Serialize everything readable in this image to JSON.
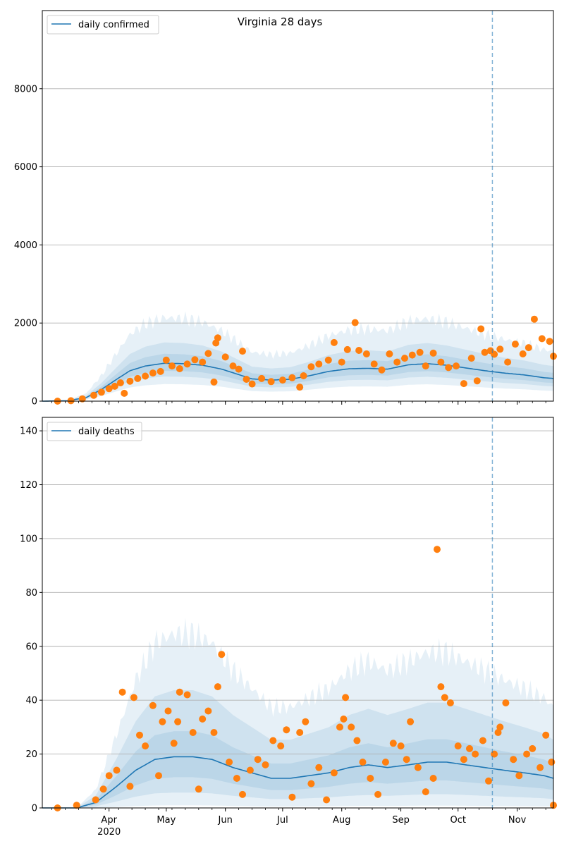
{
  "chart_data": [
    {
      "type": "line",
      "title": "Virginia 28 days",
      "legend": {
        "placement": "top-left",
        "label": "daily confirmed"
      },
      "ylim": [
        0,
        10000
      ],
      "yticks": [
        0,
        2000,
        4000,
        6000,
        8000
      ],
      "grid": "horizontal",
      "forecast_start": "2020-10-19",
      "colors": {
        "line": "#1f77b4",
        "points": "#ff7f0e",
        "band": "#1f77b4"
      },
      "series": [
        {
          "name": "daily confirmed",
          "kind": "model-line",
          "points": [
            [
              "2020-02-26",
              0
            ],
            [
              "2020-03-10",
              10
            ],
            [
              "2020-03-20",
              90
            ],
            [
              "2020-03-28",
              300
            ],
            [
              "2020-04-05",
              560
            ],
            [
              "2020-04-12",
              780
            ],
            [
              "2020-04-20",
              900
            ],
            [
              "2020-04-30",
              970
            ],
            [
              "2020-05-10",
              960
            ],
            [
              "2020-05-20",
              920
            ],
            [
              "2020-05-30",
              820
            ],
            [
              "2020-06-08",
              680
            ],
            [
              "2020-06-15",
              570
            ],
            [
              "2020-06-25",
              540
            ],
            [
              "2020-07-05",
              560
            ],
            [
              "2020-07-15",
              650
            ],
            [
              "2020-07-25",
              760
            ],
            [
              "2020-08-05",
              830
            ],
            [
              "2020-08-15",
              840
            ],
            [
              "2020-08-25",
              820
            ],
            [
              "2020-09-05",
              930
            ],
            [
              "2020-09-15",
              960
            ],
            [
              "2020-09-25",
              920
            ],
            [
              "2020-10-05",
              850
            ],
            [
              "2020-10-15",
              780
            ],
            [
              "2020-10-25",
              720
            ],
            [
              "2020-11-05",
              670
            ],
            [
              "2020-11-15",
              600
            ],
            [
              "2020-11-20",
              580
            ]
          ]
        },
        {
          "name": "reported",
          "kind": "observations",
          "points": [
            [
              "2020-03-05",
              0
            ],
            [
              "2020-03-12",
              10
            ],
            [
              "2020-03-18",
              60
            ],
            [
              "2020-03-24",
              150
            ],
            [
              "2020-03-28",
              230
            ],
            [
              "2020-04-01",
              320
            ],
            [
              "2020-04-04",
              380
            ],
            [
              "2020-04-07",
              470
            ],
            [
              "2020-04-09",
              200
            ],
            [
              "2020-04-12",
              510
            ],
            [
              "2020-04-16",
              580
            ],
            [
              "2020-04-20",
              640
            ],
            [
              "2020-04-24",
              720
            ],
            [
              "2020-04-28",
              760
            ],
            [
              "2020-05-01",
              1050
            ],
            [
              "2020-05-04",
              900
            ],
            [
              "2020-05-08",
              830
            ],
            [
              "2020-05-12",
              950
            ],
            [
              "2020-05-16",
              1060
            ],
            [
              "2020-05-20",
              1000
            ],
            [
              "2020-05-23",
              1220
            ],
            [
              "2020-05-26",
              490
            ],
            [
              "2020-05-28",
              1620
            ],
            [
              "2020-05-27",
              1490
            ],
            [
              "2020-06-01",
              1130
            ],
            [
              "2020-06-05",
              900
            ],
            [
              "2020-06-08",
              820
            ],
            [
              "2020-06-10",
              1280
            ],
            [
              "2020-06-12",
              560
            ],
            [
              "2020-06-15",
              440
            ],
            [
              "2020-06-20",
              580
            ],
            [
              "2020-06-25",
              500
            ],
            [
              "2020-07-01",
              540
            ],
            [
              "2020-07-06",
              600
            ],
            [
              "2020-07-10",
              360
            ],
            [
              "2020-07-12",
              650
            ],
            [
              "2020-07-16",
              880
            ],
            [
              "2020-07-20",
              950
            ],
            [
              "2020-07-25",
              1050
            ],
            [
              "2020-07-28",
              1500
            ],
            [
              "2020-08-01",
              1000
            ],
            [
              "2020-08-04",
              1320
            ],
            [
              "2020-08-08",
              2010
            ],
            [
              "2020-08-10",
              1300
            ],
            [
              "2020-08-14",
              1210
            ],
            [
              "2020-08-18",
              950
            ],
            [
              "2020-08-22",
              800
            ],
            [
              "2020-08-26",
              1210
            ],
            [
              "2020-08-30",
              1000
            ],
            [
              "2020-09-03",
              1100
            ],
            [
              "2020-09-07",
              1180
            ],
            [
              "2020-09-11",
              1250
            ],
            [
              "2020-09-14",
              900
            ],
            [
              "2020-09-18",
              1230
            ],
            [
              "2020-09-22",
              1000
            ],
            [
              "2020-09-26",
              860
            ],
            [
              "2020-09-30",
              900
            ],
            [
              "2020-10-04",
              450
            ],
            [
              "2020-10-08",
              1100
            ],
            [
              "2020-10-11",
              520
            ],
            [
              "2020-10-13",
              1850
            ],
            [
              "2020-10-15",
              1250
            ],
            [
              "2020-10-18",
              1290
            ],
            [
              "2020-10-20",
              1200
            ],
            [
              "2020-10-23",
              1330
            ],
            [
              "2020-10-27",
              1000
            ],
            [
              "2020-10-31",
              1460
            ],
            [
              "2020-11-04",
              1210
            ],
            [
              "2020-11-07",
              1370
            ],
            [
              "2020-11-10",
              2100
            ],
            [
              "2020-11-14",
              1600
            ],
            [
              "2020-11-18",
              1530
            ],
            [
              "2020-11-20",
              1150
            ]
          ]
        }
      ]
    },
    {
      "type": "line",
      "title": "",
      "legend": {
        "placement": "top-left",
        "label": "daily deaths"
      },
      "ylim": [
        0,
        145
      ],
      "yticks": [
        0,
        20,
        40,
        60,
        80,
        100,
        120,
        140
      ],
      "grid": "horizontal",
      "forecast_start": "2020-10-19",
      "x_ticks": [
        "Apr",
        "May",
        "Jun",
        "Jul",
        "Aug",
        "Sep",
        "Oct",
        "Nov"
      ],
      "x_year_label": "2020",
      "colors": {
        "line": "#1f77b4",
        "points": "#ff7f0e",
        "band": "#1f77b4"
      },
      "series": [
        {
          "name": "daily deaths",
          "kind": "model-line",
          "points": [
            [
              "2020-02-26",
              0
            ],
            [
              "2020-03-15",
              0
            ],
            [
              "2020-03-25",
              2
            ],
            [
              "2020-04-05",
              8
            ],
            [
              "2020-04-15",
              14
            ],
            [
              "2020-04-25",
              18
            ],
            [
              "2020-05-05",
              19
            ],
            [
              "2020-05-15",
              19
            ],
            [
              "2020-05-25",
              18
            ],
            [
              "2020-06-05",
              15
            ],
            [
              "2020-06-15",
              13
            ],
            [
              "2020-06-25",
              11
            ],
            [
              "2020-07-05",
              11
            ],
            [
              "2020-07-15",
              12
            ],
            [
              "2020-07-25",
              13
            ],
            [
              "2020-08-05",
              15
            ],
            [
              "2020-08-15",
              16
            ],
            [
              "2020-08-25",
              15
            ],
            [
              "2020-09-05",
              16
            ],
            [
              "2020-09-15",
              17
            ],
            [
              "2020-09-25",
              17
            ],
            [
              "2020-10-05",
              16
            ],
            [
              "2020-10-15",
              15
            ],
            [
              "2020-10-25",
              14
            ],
            [
              "2020-11-05",
              13
            ],
            [
              "2020-11-15",
              12
            ],
            [
              "2020-11-20",
              11
            ]
          ]
        },
        {
          "name": "reported",
          "kind": "observations",
          "points": [
            [
              "2020-03-05",
              0
            ],
            [
              "2020-03-15",
              1
            ],
            [
              "2020-03-25",
              3
            ],
            [
              "2020-03-29",
              7
            ],
            [
              "2020-04-01",
              12
            ],
            [
              "2020-04-05",
              14
            ],
            [
              "2020-04-08",
              43
            ],
            [
              "2020-04-12",
              8
            ],
            [
              "2020-04-14",
              41
            ],
            [
              "2020-04-17",
              27
            ],
            [
              "2020-04-20",
              23
            ],
            [
              "2020-04-24",
              38
            ],
            [
              "2020-04-27",
              12
            ],
            [
              "2020-04-29",
              32
            ],
            [
              "2020-05-02",
              36
            ],
            [
              "2020-05-05",
              24
            ],
            [
              "2020-05-07",
              32
            ],
            [
              "2020-05-08",
              43
            ],
            [
              "2020-05-12",
              42
            ],
            [
              "2020-05-15",
              28
            ],
            [
              "2020-05-18",
              7
            ],
            [
              "2020-05-20",
              33
            ],
            [
              "2020-05-23",
              36
            ],
            [
              "2020-05-26",
              28
            ],
            [
              "2020-05-28",
              45
            ],
            [
              "2020-05-30",
              57
            ],
            [
              "2020-06-03",
              17
            ],
            [
              "2020-06-07",
              11
            ],
            [
              "2020-06-10",
              5
            ],
            [
              "2020-06-14",
              14
            ],
            [
              "2020-06-18",
              18
            ],
            [
              "2020-06-22",
              16
            ],
            [
              "2020-06-26",
              25
            ],
            [
              "2020-06-30",
              23
            ],
            [
              "2020-07-03",
              29
            ],
            [
              "2020-07-06",
              4
            ],
            [
              "2020-07-10",
              28
            ],
            [
              "2020-07-13",
              32
            ],
            [
              "2020-07-16",
              9
            ],
            [
              "2020-07-20",
              15
            ],
            [
              "2020-07-24",
              3
            ],
            [
              "2020-07-28",
              13
            ],
            [
              "2020-07-31",
              30
            ],
            [
              "2020-08-02",
              33
            ],
            [
              "2020-08-03",
              41
            ],
            [
              "2020-08-06",
              30
            ],
            [
              "2020-08-09",
              25
            ],
            [
              "2020-08-12",
              17
            ],
            [
              "2020-08-16",
              11
            ],
            [
              "2020-08-20",
              5
            ],
            [
              "2020-08-24",
              17
            ],
            [
              "2020-08-28",
              24
            ],
            [
              "2020-09-01",
              23
            ],
            [
              "2020-09-04",
              18
            ],
            [
              "2020-09-06",
              32
            ],
            [
              "2020-09-10",
              15
            ],
            [
              "2020-09-14",
              6
            ],
            [
              "2020-09-18",
              11
            ],
            [
              "2020-09-20",
              96
            ],
            [
              "2020-09-22",
              45
            ],
            [
              "2020-09-24",
              41
            ],
            [
              "2020-09-27",
              39
            ],
            [
              "2020-10-01",
              23
            ],
            [
              "2020-10-04",
              18
            ],
            [
              "2020-10-07",
              22
            ],
            [
              "2020-10-10",
              20
            ],
            [
              "2020-10-14",
              25
            ],
            [
              "2020-10-17",
              10
            ],
            [
              "2020-10-20",
              20
            ],
            [
              "2020-10-22",
              28
            ],
            [
              "2020-10-23",
              30
            ],
            [
              "2020-10-26",
              39
            ],
            [
              "2020-10-30",
              18
            ],
            [
              "2020-11-02",
              12
            ],
            [
              "2020-11-06",
              20
            ],
            [
              "2020-11-09",
              22
            ],
            [
              "2020-11-13",
              15
            ],
            [
              "2020-11-16",
              27
            ],
            [
              "2020-11-19",
              17
            ],
            [
              "2020-11-20",
              1
            ]
          ]
        }
      ]
    }
  ]
}
